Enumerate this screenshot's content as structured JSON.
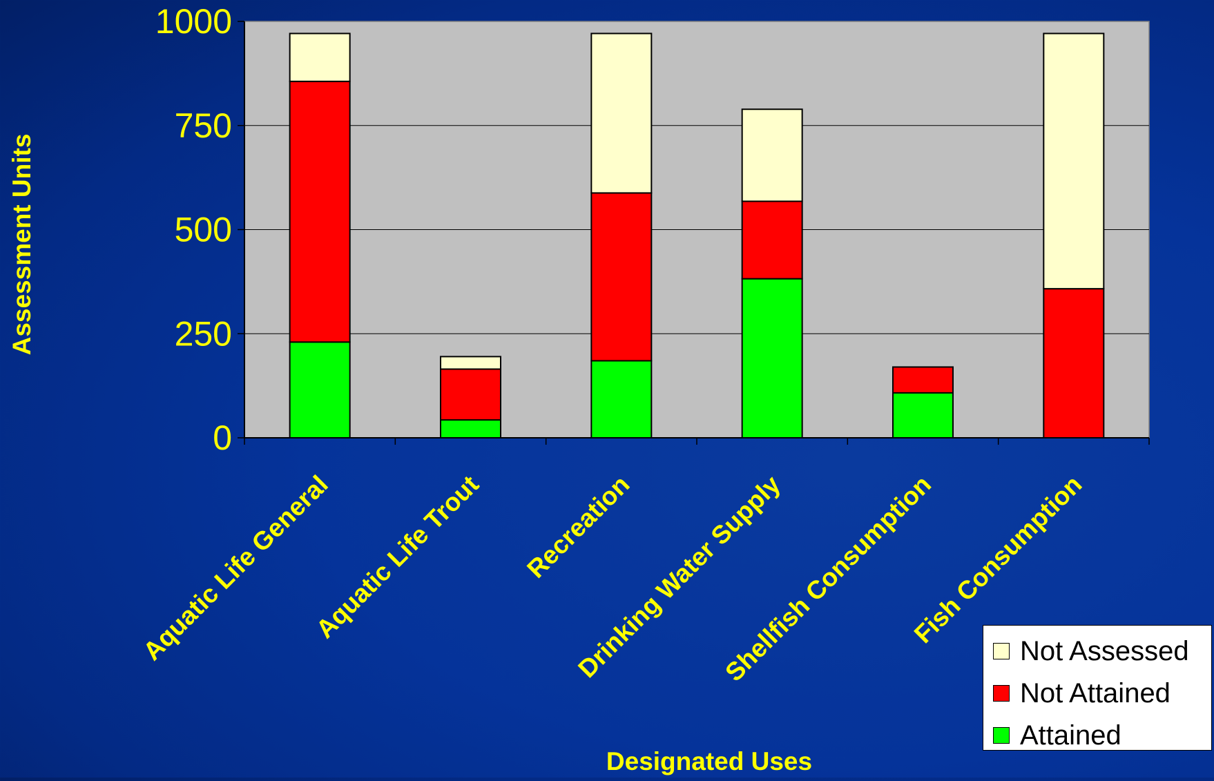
{
  "chart_data": {
    "type": "bar",
    "stacked": true,
    "xlabel": "Designated Uses",
    "ylabel": "Assessment Units",
    "ylim": [
      0,
      1000
    ],
    "yticks": [
      0,
      250,
      500,
      750,
      1000
    ],
    "grid": true,
    "legend_position": "bottom-right",
    "categories": [
      "Aquatic Life General",
      "Aquatic Life Trout",
      "Recreation",
      "Drinking Water Supply",
      "Shellfish Consumption",
      "Fish Consumption"
    ],
    "series": [
      {
        "name": "Attained",
        "color": "#00ff00",
        "values": [
          230,
          43,
          185,
          382,
          108,
          0
        ]
      },
      {
        "name": "Not Attained",
        "color": "#ff0000",
        "values": [
          626,
          122,
          403,
          186,
          62,
          358
        ]
      },
      {
        "name": "Not Assessed",
        "color": "#ffffcc",
        "values": [
          115,
          30,
          383,
          221,
          0,
          613
        ]
      }
    ],
    "legend_order": [
      "Not Assessed",
      "Not Attained",
      "Attained"
    ],
    "colors": {
      "plot_background": "#c0c0c0",
      "text": "#ffff00",
      "slide_background": "#05339a"
    }
  }
}
